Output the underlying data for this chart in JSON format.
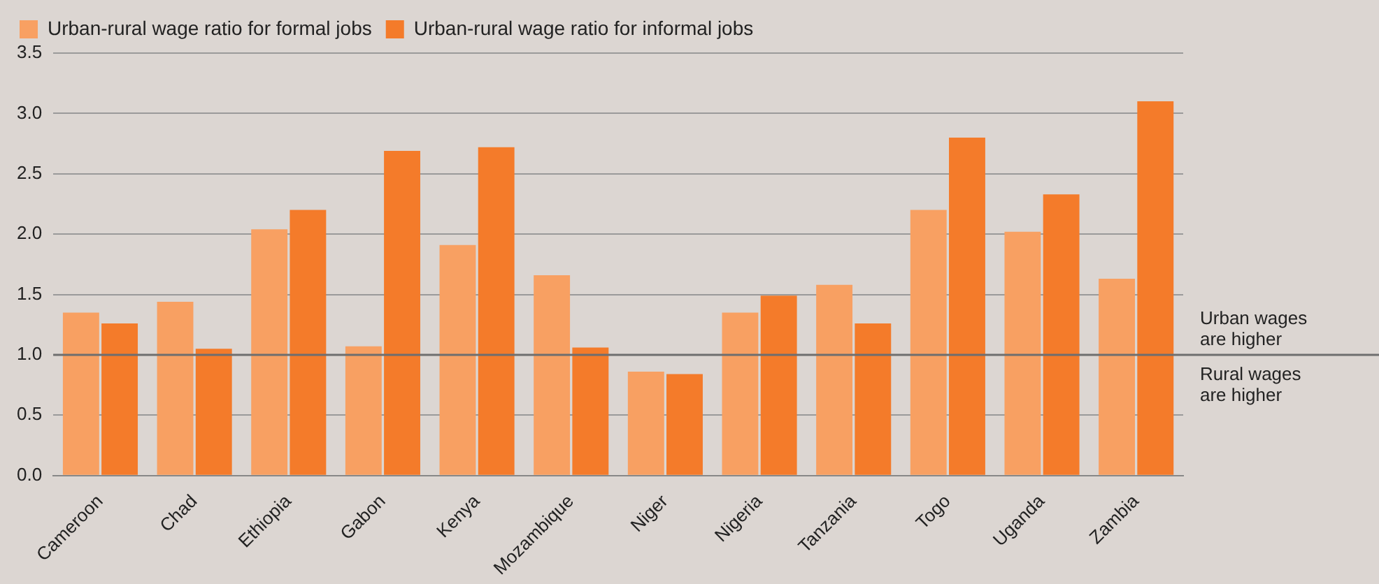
{
  "chart_data": {
    "type": "bar",
    "categories": [
      "Cameroon",
      "Chad",
      "Ethiopia",
      "Gabon",
      "Kenya",
      "Mozambique",
      "Niger",
      "Nigeria",
      "Tanzania",
      "Togo",
      "Uganda",
      "Zambia"
    ],
    "series": [
      {
        "name": "Urban-rural wage ratio for formal jobs",
        "color": "#f8a062",
        "values": [
          1.35,
          1.44,
          2.04,
          1.07,
          1.91,
          1.66,
          0.86,
          1.35,
          1.58,
          2.2,
          2.02,
          1.63
        ]
      },
      {
        "name": "Urban-rural wage ratio for informal jobs",
        "color": "#f47b2a",
        "values": [
          1.26,
          1.05,
          2.2,
          2.69,
          2.72,
          1.06,
          0.84,
          1.49,
          1.26,
          2.8,
          2.33,
          3.1
        ]
      }
    ],
    "ylim": [
      0,
      3.5
    ],
    "yticks": [
      {
        "value": 0,
        "label": "0.0"
      },
      {
        "value": 0.5,
        "label": "0.5"
      },
      {
        "value": 1,
        "label": "1.0"
      },
      {
        "value": 1.5,
        "label": "1.5"
      },
      {
        "value": 2,
        "label": "2.0"
      },
      {
        "value": 2.5,
        "label": "2.5"
      },
      {
        "value": 3,
        "label": "3.0"
      },
      {
        "value": 3.5,
        "label": "3.5"
      }
    ],
    "grid": "y",
    "legend": "top left",
    "ref_lines": [
      {
        "axis": "y",
        "value": 1,
        "color": "#6e6e6e"
      }
    ],
    "annotations": [
      "Urban wages are higher",
      "Rural wages are higher"
    ]
  }
}
